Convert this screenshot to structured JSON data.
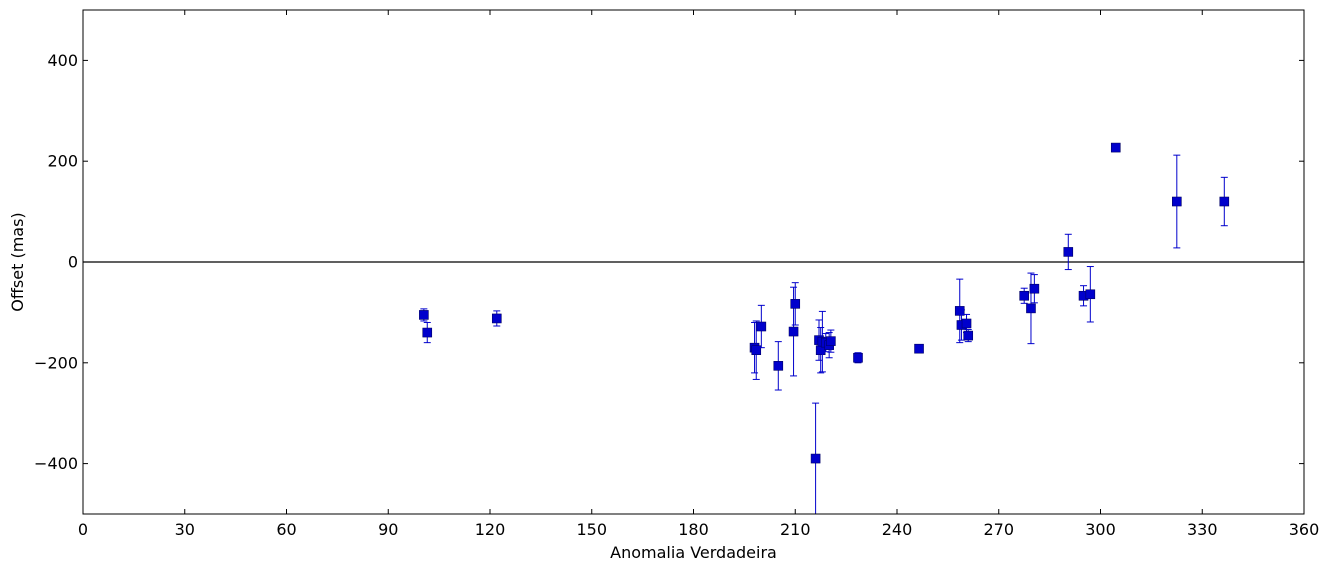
{
  "chart_data": {
    "type": "scatter",
    "title": "",
    "xlabel": "Anomalia Verdadeira",
    "ylabel": "Offset (mas)",
    "xlim": [
      0,
      360
    ],
    "ylim": [
      -500,
      500
    ],
    "xticks": [
      0,
      30,
      60,
      90,
      120,
      150,
      180,
      210,
      240,
      270,
      300,
      330,
      360
    ],
    "yticks": [
      -400,
      -200,
      0,
      200,
      400
    ],
    "ytick_labels": [
      "−400",
      "−200",
      "0",
      "200",
      "400"
    ],
    "reference_line_y": 0,
    "grid": false,
    "legend": "none",
    "marker": "square",
    "series_color": "#0000cc",
    "series": [
      {
        "points": [
          {
            "x": 100.5,
            "y": -105,
            "err": 12
          },
          {
            "x": 101.5,
            "y": -140,
            "err": 20
          },
          {
            "x": 122,
            "y": -112,
            "err": 15
          },
          {
            "x": 198,
            "y": -170,
            "err": 50
          },
          {
            "x": 198.5,
            "y": -175,
            "err": 58
          },
          {
            "x": 200,
            "y": -128,
            "err": 42
          },
          {
            "x": 205,
            "y": -206,
            "err": 48
          },
          {
            "x": 209.5,
            "y": -138,
            "err": 88
          },
          {
            "x": 210,
            "y": -83,
            "err": 42
          },
          {
            "x": 216,
            "y": -390,
            "err": 110
          },
          {
            "x": 217,
            "y": -155,
            "err": 40
          },
          {
            "x": 217.5,
            "y": -175,
            "err": 45
          },
          {
            "x": 218,
            "y": -158,
            "err": 60
          },
          {
            "x": 219,
            "y": -160,
            "err": 18
          },
          {
            "x": 220,
            "y": -165,
            "err": 25
          },
          {
            "x": 220.5,
            "y": -157,
            "err": 22
          },
          {
            "x": 228.5,
            "y": -190,
            "err": 10
          },
          {
            "x": 246.5,
            "y": -172,
            "err": 8
          },
          {
            "x": 258.5,
            "y": -97,
            "err": 63
          },
          {
            "x": 259,
            "y": -125,
            "err": 30
          },
          {
            "x": 260.5,
            "y": -122,
            "err": 18
          },
          {
            "x": 261,
            "y": -146,
            "err": 12
          },
          {
            "x": 277.5,
            "y": -67,
            "err": 15
          },
          {
            "x": 279.5,
            "y": -92,
            "err": 70
          },
          {
            "x": 280.5,
            "y": -53,
            "err": 28
          },
          {
            "x": 290.5,
            "y": 20,
            "err": 35
          },
          {
            "x": 295,
            "y": -67,
            "err": 20
          },
          {
            "x": 297,
            "y": -64,
            "err": 55
          },
          {
            "x": 304.5,
            "y": 227,
            "err": 5
          },
          {
            "x": 322.5,
            "y": 120,
            "err": 92
          },
          {
            "x": 336.5,
            "y": 120,
            "err": 48
          }
        ]
      }
    ]
  }
}
